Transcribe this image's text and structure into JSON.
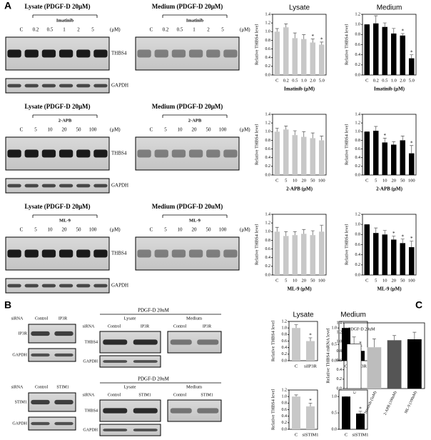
{
  "panel_labels": [
    "A",
    "B",
    "C"
  ],
  "panel_a_blots": [
    {
      "lysate": {
        "title": "Lysate (PDGF-D 20μM)",
        "treatment": "Imatinib",
        "lanes": [
          "C",
          "0.2",
          "0.5",
          "1",
          "2",
          "5"
        ],
        "unit": "(μM)",
        "bands": [
          "THBS4",
          "GAPDH"
        ]
      },
      "medium": {
        "title": "Medium (PDGF-D 20μM)",
        "treatment": "Imatinib",
        "lanes": [
          "C",
          "0.2",
          "0.5",
          "1",
          "2",
          "5"
        ],
        "unit": "(μM)"
      }
    },
    {
      "lysate": {
        "title": "Lysate (PDGF-D 20μM)",
        "treatment": "2-APB",
        "lanes": [
          "C",
          "5",
          "10",
          "20",
          "50",
          "100"
        ],
        "unit": "(μM)",
        "bands": [
          "THBS4",
          "GAPDH"
        ]
      },
      "medium": {
        "title": "Medium (PDGF-D 20μM)",
        "treatment": "2-APB",
        "lanes": [
          "C",
          "5",
          "10",
          "20",
          "50",
          "100"
        ],
        "unit": "(μM)"
      }
    },
    {
      "lysate": {
        "title": "Lysate (PDGF-D 20μM)",
        "treatment": "ML-9",
        "lanes": [
          "C",
          "5",
          "10",
          "20",
          "50",
          "100"
        ],
        "unit": "(μM)",
        "bands": [
          "THBS4",
          "GAPDH"
        ]
      },
      "medium": {
        "title": "Medium (PDGF-D 20uM)",
        "treatment": "ML-9",
        "lanes": [
          "C",
          "5",
          "10",
          "20",
          "50",
          "100"
        ],
        "unit": "(μM)"
      }
    }
  ],
  "panel_b_blots": [
    {
      "knockdown": {
        "row_label": "siRNA",
        "lanes": [
          "Control",
          "IP3R"
        ],
        "bands": [
          "IP3R",
          "GAPDH"
        ]
      },
      "treated": {
        "title": "PDGF-D 20uM",
        "fractions": [
          "Lysate",
          "Medium"
        ],
        "row_label": "siRNA",
        "lanes": [
          "Control",
          "IP3R",
          "Control",
          "IP3R"
        ],
        "bands": [
          "THBS4",
          "GAPDH"
        ]
      }
    },
    {
      "knockdown": {
        "row_label": "siRNA",
        "lanes": [
          "Control",
          "STIM1"
        ],
        "bands": [
          "STIM1",
          "GAPDH"
        ]
      },
      "treated": {
        "title": "PDGF-D 20uM",
        "fractions": [
          "Lysate",
          "Medium"
        ],
        "row_label": "siRNA",
        "lanes": [
          "Control",
          "STIM1",
          "Control",
          "STIM1"
        ],
        "bands": [
          "THBS4",
          "GAPDH"
        ]
      }
    }
  ],
  "chart_data": [
    {
      "type": "bar",
      "title": "Lysate",
      "ylabel": "Relative THBS4 level",
      "xlabel": "Imatinib (μM)",
      "categories": [
        "C",
        "0.2",
        "0.5",
        "1.0",
        "2.0",
        "5.0"
      ],
      "values": [
        1.0,
        1.1,
        0.85,
        0.83,
        0.75,
        0.7
      ],
      "errors": [
        0.07,
        0.08,
        0.12,
        0.1,
        0.08,
        0.06
      ],
      "stars": [
        null,
        null,
        null,
        null,
        "*",
        "*"
      ],
      "color": "#c8c8c8",
      "ylim": [
        0,
        1.4
      ],
      "yticks": [
        {
          "value": 0,
          "label": "0.0"
        },
        0.2,
        0.4,
        0.6,
        0.8,
        {
          "value": 1,
          "label": "1.0"
        },
        1.2,
        1.4
      ]
    },
    {
      "type": "bar",
      "title": "Medium",
      "ylabel": "Relative THBS4 level",
      "xlabel": "Imatinib (μM)",
      "categories": [
        "C",
        "0.2",
        "0.5",
        "1.0",
        "2.0",
        "5.0"
      ],
      "values": [
        1.0,
        1.02,
        0.95,
        0.82,
        0.78,
        0.33
      ],
      "errors": [
        0,
        0.15,
        0.08,
        0.1,
        0.04,
        0.07
      ],
      "stars": [
        null,
        null,
        null,
        null,
        "*",
        "*"
      ],
      "color": "#000000",
      "ylim": [
        0,
        1.2
      ],
      "yticks": [
        {
          "value": 0,
          "label": "0.0"
        },
        0.2,
        0.4,
        0.6,
        0.8,
        {
          "value": 1,
          "label": "1.0"
        },
        1.2
      ]
    },
    {
      "type": "bar",
      "ylabel": "Relative THBS4 level",
      "xlabel": "2-APB (μM)",
      "categories": [
        "C",
        "5",
        "10",
        "20",
        "50",
        "100"
      ],
      "values": [
        1.0,
        1.05,
        0.92,
        0.88,
        0.85,
        0.8
      ],
      "errors": [
        0.08,
        0.08,
        0.1,
        0.12,
        0.12,
        0.1
      ],
      "color": "#c8c8c8",
      "ylim": [
        0,
        1.4
      ],
      "yticks": [
        {
          "value": 0,
          "label": "0.0"
        },
        0.2,
        0.4,
        0.6,
        0.8,
        {
          "value": 1,
          "label": "1.0"
        },
        1.2,
        1.4
      ]
    },
    {
      "type": "bar",
      "ylabel": "Relative THBS4 level",
      "xlabel": "2-APB (μM)",
      "categories": [
        "C",
        "5",
        "10",
        "20",
        "50",
        "100"
      ],
      "values": [
        1.0,
        1.02,
        0.75,
        0.7,
        0.8,
        0.5
      ],
      "errors": [
        0,
        0.1,
        0.1,
        0.07,
        0.1,
        0.18
      ],
      "stars": [
        null,
        null,
        "*",
        null,
        null,
        "*"
      ],
      "color": "#000000",
      "ylim": [
        0,
        1.4
      ],
      "yticks": [
        {
          "value": 0,
          "label": "0.0"
        },
        0.2,
        0.4,
        0.6,
        0.8,
        {
          "value": 1,
          "label": "1.0"
        },
        1.2,
        1.4
      ]
    },
    {
      "type": "bar",
      "ylabel": "Relative THBS4 level",
      "xlabel": "ML-9 (μM)",
      "categories": [
        "C",
        "5",
        "10",
        "20",
        "50",
        "100"
      ],
      "values": [
        1.0,
        0.9,
        0.92,
        0.95,
        0.92,
        1.0
      ],
      "errors": [
        0.1,
        0.1,
        0.08,
        0.1,
        0.1,
        0.15
      ],
      "color": "#c8c8c8",
      "ylim": [
        0,
        1.4
      ],
      "yticks": [
        {
          "value": 0,
          "label": "0.0"
        },
        0.2,
        0.4,
        0.6,
        0.8,
        {
          "value": 1,
          "label": "1.0"
        },
        1.2,
        1.4
      ]
    },
    {
      "type": "bar",
      "ylabel": "Relative THBS4 level",
      "xlabel": "ML-9 (μM)",
      "categories": [
        "C",
        "5",
        "10",
        "20",
        "50",
        "100"
      ],
      "values": [
        1.0,
        0.83,
        0.8,
        0.7,
        0.63,
        0.55
      ],
      "errors": [
        0,
        0.1,
        0.08,
        0.07,
        0.08,
        0.12
      ],
      "stars": [
        null,
        null,
        null,
        "*",
        "*",
        "*"
      ],
      "color": "#000000",
      "ylim": [
        0,
        1.2
      ],
      "yticks": [
        {
          "value": 0,
          "label": "0.0"
        },
        0.2,
        0.4,
        0.6,
        0.8,
        {
          "value": 1,
          "label": "1.0"
        },
        1.2
      ]
    },
    {
      "type": "bar",
      "title": "Lysate",
      "ylabel": "Relative THBS4 level",
      "categories": [
        "C",
        "siIP3R"
      ],
      "values": [
        1.0,
        0.6
      ],
      "errors": [
        0.1,
        0.1
      ],
      "stars": [
        null,
        "*"
      ],
      "color": "#c8c8c8",
      "ylim": [
        0,
        1.2
      ],
      "yticks": [
        {
          "value": 0,
          "label": "0.0"
        },
        0.2,
        0.4,
        0.6,
        0.8,
        {
          "value": 1,
          "label": "1.0"
        },
        1.2
      ]
    },
    {
      "type": "bar",
      "title": "Medium",
      "categories": [
        "C",
        "siIP3R"
      ],
      "values": [
        1.0,
        0.3
      ],
      "errors": [
        0,
        0.15
      ],
      "stars": [
        null,
        "*"
      ],
      "color": "#000000",
      "ylim": [
        0,
        1.2
      ],
      "yticks": [
        {
          "value": 0,
          "label": "0.0"
        },
        0.5,
        {
          "value": 1,
          "label": "1.0"
        }
      ]
    },
    {
      "type": "bar",
      "ylabel": "Relative THBS4 level",
      "categories": [
        "C",
        "siSTIM1"
      ],
      "values": [
        1.0,
        0.7
      ],
      "errors": [
        0.05,
        0.1
      ],
      "stars": [
        null,
        "*"
      ],
      "color": "#c8c8c8",
      "ylim": [
        0,
        1.2
      ],
      "yticks": [
        {
          "value": 0,
          "label": "0.0"
        },
        0.2,
        0.4,
        0.6,
        0.8,
        {
          "value": 1,
          "label": "1.0"
        },
        1.2
      ]
    },
    {
      "type": "bar",
      "categories": [
        "C",
        "siSTIM1"
      ],
      "values": [
        1.0,
        0.48
      ],
      "errors": [
        0,
        0.07
      ],
      "stars": [
        null,
        "*"
      ],
      "color": "#000000",
      "ylim": [
        0,
        1.2
      ],
      "yticks": [
        {
          "value": 0,
          "label": "0.0"
        },
        0.5,
        {
          "value": 1,
          "label": "1.0"
        }
      ]
    },
    {
      "type": "bar",
      "annotation": "PDGF-D 20uM",
      "ylabel": "Relative THBS4 mRNA level",
      "categories": [
        "C",
        "Imatinib (5uM)",
        "2-APB (100uM)",
        "ML-9 (100uM)"
      ],
      "values": [
        0.95,
        0.88,
        1.03,
        1.05
      ],
      "errors": [
        0.15,
        0.18,
        0.1,
        0.15
      ],
      "colors": [
        "#ffffff",
        "#bdbdbd",
        "#555555",
        "#000000"
      ],
      "ylim": [
        0,
        1.4
      ],
      "yticks": [
        {
          "value": 0,
          "label": "0.0"
        },
        0.2,
        0.4,
        0.6,
        0.8,
        {
          "value": 1,
          "label": "1.0"
        },
        1.2,
        1.4
      ]
    }
  ]
}
